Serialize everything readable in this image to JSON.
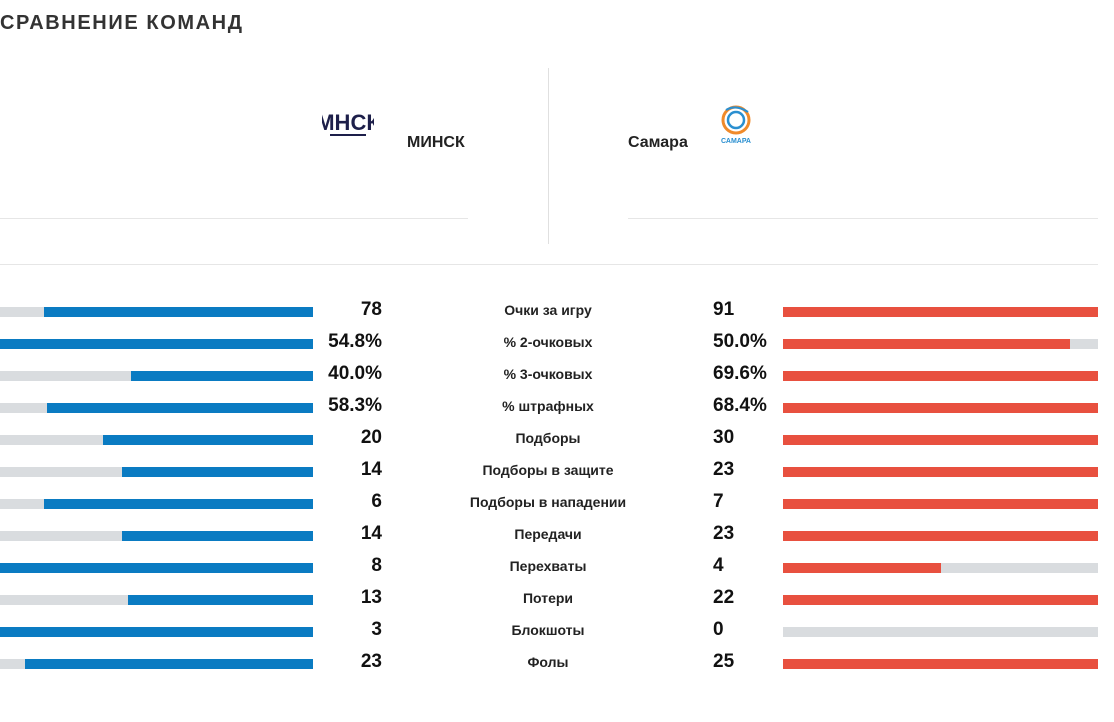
{
  "section_title": "СРАВНЕНИЕ КОМАНД",
  "home": {
    "name": "МИНСК",
    "logo_text": "МНСК",
    "color": "#0a7bc2"
  },
  "away": {
    "name": "Самара",
    "logo_text": "САМАРА",
    "color": "#e8503f"
  },
  "track_color": "#d9dcdf",
  "stats": [
    {
      "label": "Очки за игру",
      "home": "78",
      "away": "91",
      "home_fill": 0.86,
      "away_fill": 1.0
    },
    {
      "label": "% 2-очковых",
      "home": "54.8%",
      "away": "50.0%",
      "home_fill": 1.0,
      "away_fill": 0.91
    },
    {
      "label": "% 3-очковых",
      "home": "40.0%",
      "away": "69.6%",
      "home_fill": 0.58,
      "away_fill": 1.0
    },
    {
      "label": "% штрафных",
      "home": "58.3%",
      "away": "68.4%",
      "home_fill": 0.85,
      "away_fill": 1.0
    },
    {
      "label": "Подборы",
      "home": "20",
      "away": "30",
      "home_fill": 0.67,
      "away_fill": 1.0
    },
    {
      "label": "Подборы в защите",
      "home": "14",
      "away": "23",
      "home_fill": 0.61,
      "away_fill": 1.0
    },
    {
      "label": "Подборы в нападении",
      "home": "6",
      "away": "7",
      "home_fill": 0.86,
      "away_fill": 1.0
    },
    {
      "label": "Передачи",
      "home": "14",
      "away": "23",
      "home_fill": 0.61,
      "away_fill": 1.0
    },
    {
      "label": "Перехваты",
      "home": "8",
      "away": "4",
      "home_fill": 1.0,
      "away_fill": 0.5
    },
    {
      "label": "Потери",
      "home": "13",
      "away": "22",
      "home_fill": 0.59,
      "away_fill": 1.0
    },
    {
      "label": "Блокшоты",
      "home": "3",
      "away": "0",
      "home_fill": 1.0,
      "away_fill": 0.0
    },
    {
      "label": "Фолы",
      "home": "23",
      "away": "25",
      "home_fill": 0.92,
      "away_fill": 1.0
    }
  ]
}
